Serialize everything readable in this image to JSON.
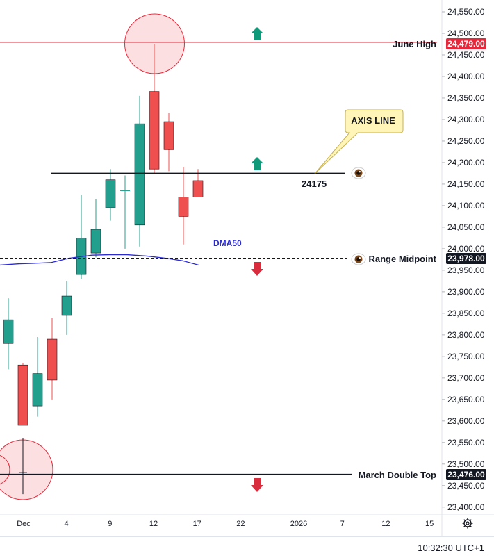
{
  "chart_data": {
    "type": "candlestick",
    "y_axis": {
      "ticks": [
        "24,550.00",
        "24,500.00",
        "24,450.00",
        "24,400.00",
        "24,350.00",
        "24,300.00",
        "24,250.00",
        "24,200.00",
        "24,150.00",
        "24,100.00",
        "24,050.00",
        "24,000.00",
        "23,950.00",
        "23,900.00",
        "23,850.00",
        "23,800.00",
        "23,750.00",
        "23,700.00",
        "23,650.00",
        "23,600.00",
        "23,550.00",
        "23,500.00",
        "23,450.00",
        "23,400.00"
      ],
      "ylim": [
        23380,
        24590
      ]
    },
    "x_axis": {
      "ticks": [
        "Dec",
        "4",
        "9",
        "12",
        "17",
        "22",
        "2026",
        "7",
        "12",
        "15"
      ]
    },
    "candles": [
      {
        "open": 23480,
        "high": 23560,
        "low": 23430,
        "close": 23480
      },
      {
        "open": 23780,
        "high": 23885,
        "low": 23720,
        "close": 23835
      },
      {
        "open": 23730,
        "high": 23735,
        "low": 23595,
        "close": 23590
      },
      {
        "open": 23635,
        "high": 23795,
        "low": 23610,
        "close": 23710
      },
      {
        "open": 23790,
        "high": 23840,
        "low": 23650,
        "close": 23695
      },
      {
        "open": 23845,
        "high": 23925,
        "low": 23800,
        "close": 23890
      },
      {
        "open": 23940,
        "high": 24125,
        "low": 23930,
        "close": 24025
      },
      {
        "open": 23990,
        "high": 24115,
        "low": 23980,
        "close": 24045
      },
      {
        "open": 24095,
        "high": 24185,
        "low": 24065,
        "close": 24160
      },
      {
        "open": 24135,
        "high": 24170,
        "low": 24000,
        "close": 24135
      },
      {
        "open": 24055,
        "high": 24355,
        "low": 24005,
        "close": 24290
      },
      {
        "open": 24365,
        "high": 24475,
        "low": 24175,
        "close": 24185
      },
      {
        "open": 24295,
        "high": 24315,
        "low": 24180,
        "close": 24230
      },
      {
        "open": 24120,
        "high": 24190,
        "low": 24010,
        "close": 24075
      },
      {
        "open": 24158,
        "high": 24185,
        "low": 24120,
        "close": 24120
      }
    ],
    "dma50": {
      "label": "DMA50",
      "points": [
        23962,
        23965,
        23966,
        23968,
        23978,
        23985,
        23986,
        23986,
        23983,
        23978,
        23972,
        23962
      ]
    },
    "levels": [
      {
        "label": "June High",
        "value": "24,479.00",
        "y": 24479,
        "color": "#e8283a",
        "style": "solid"
      },
      {
        "label": "Range Midpoint",
        "value": "23,978.00",
        "y": 23978,
        "color": "#131722",
        "style": "dashed"
      },
      {
        "label": "March Double Top",
        "value": "23,476.00",
        "y": 23476,
        "color": "#131722",
        "style": "solid"
      }
    ],
    "axis_line": {
      "value": "24175",
      "y": 24175,
      "callout": "AXIS LINE"
    },
    "time": "10:32:30 UTC+1",
    "colors": {
      "up": "#22a08d",
      "down": "#ef4f4f",
      "axis_bg": "#131722",
      "june_badge": "#e8283a",
      "arrow_up": "#0f9a7a",
      "arrow_down": "#d92c3c"
    }
  }
}
